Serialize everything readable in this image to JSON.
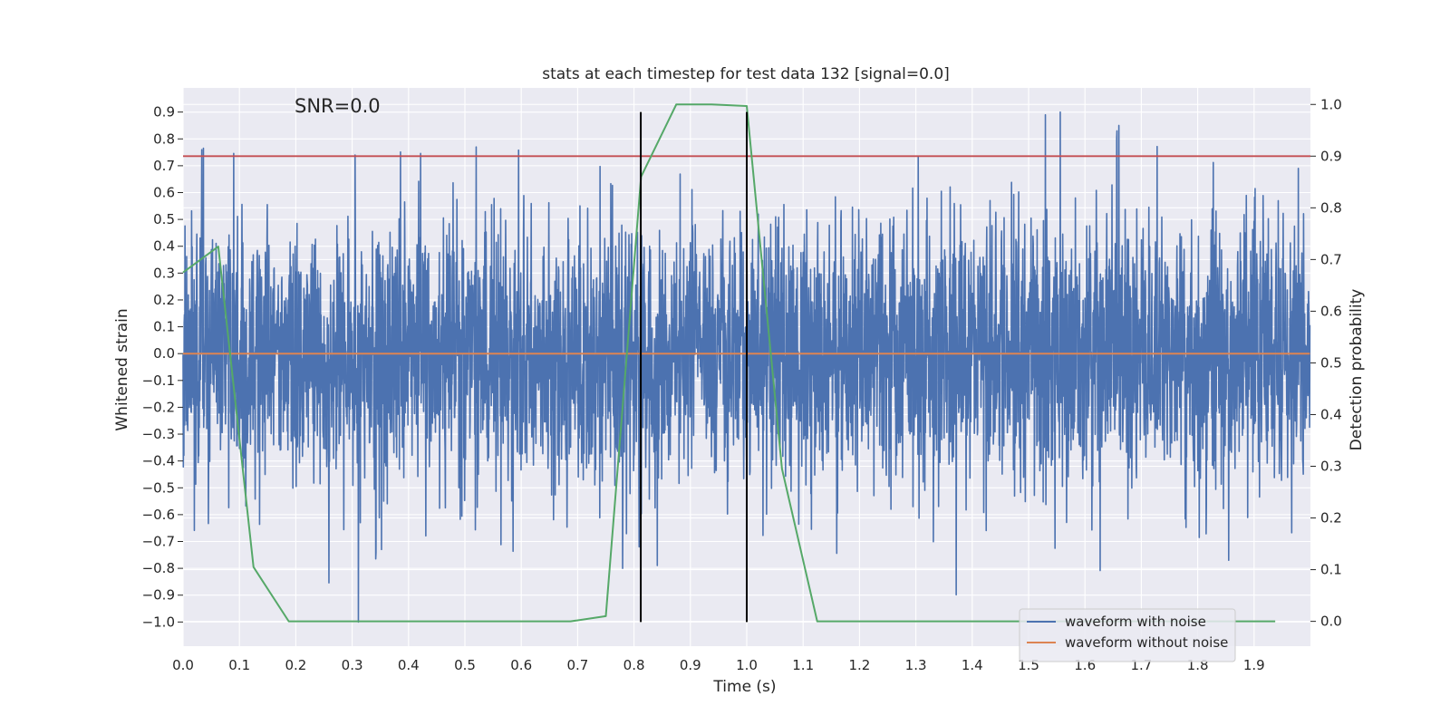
{
  "chart_data": {
    "type": "line",
    "title": "stats at each timestep for test data 132 [signal=0.0]",
    "annotation": "SNR=0.0",
    "xlabel": "Time (s)",
    "ylabel": "Whitened strain",
    "ylabel_right": "Detection probability",
    "xlim": [
      0.0,
      2.0
    ],
    "ylim": [
      -1.09,
      0.99
    ],
    "ylim_right": [
      -0.048,
      1.032
    ],
    "xticks": [
      0.0,
      0.1,
      0.2,
      0.3,
      0.4,
      0.5,
      0.6,
      0.7,
      0.8,
      0.9,
      1.0,
      1.1,
      1.2,
      1.3,
      1.4,
      1.5,
      1.6,
      1.7,
      1.8,
      1.9
    ],
    "xtick_labels": [
      "0.0",
      "0.1",
      "0.2",
      "0.3",
      "0.4",
      "0.5",
      "0.6",
      "0.7",
      "0.8",
      "0.9",
      "1.0",
      "1.1",
      "1.2",
      "1.3",
      "1.4",
      "1.5",
      "1.6",
      "1.7",
      "1.8",
      "1.9"
    ],
    "yticks": [
      -1.0,
      -0.9,
      -0.8,
      -0.7,
      -0.6,
      -0.5,
      -0.4,
      -0.3,
      -0.2,
      -0.1,
      0.0,
      0.1,
      0.2,
      0.3,
      0.4,
      0.5,
      0.6,
      0.7,
      0.8,
      0.9
    ],
    "ytick_labels": [
      "−1.0",
      "−0.9",
      "−0.8",
      "−0.7",
      "−0.6",
      "−0.5",
      "−0.4",
      "−0.3",
      "−0.2",
      "−0.1",
      "0.0",
      "0.1",
      "0.2",
      "0.3",
      "0.4",
      "0.5",
      "0.6",
      "0.7",
      "0.8",
      "0.9"
    ],
    "yticks_right": [
      0.0,
      0.1,
      0.2,
      0.3,
      0.4,
      0.5,
      0.6,
      0.7,
      0.8,
      0.9,
      1.0
    ],
    "ytick_labels_right": [
      "0.0",
      "0.1",
      "0.2",
      "0.3",
      "0.4",
      "0.5",
      "0.6",
      "0.7",
      "0.8",
      "0.9",
      "1.0"
    ],
    "grid": true,
    "legend_placement": "lower-right",
    "threshold_right": 0.9,
    "vlines_x": [
      0.812,
      1.0
    ],
    "vline_ylim": [
      -1.0,
      0.9
    ],
    "series": [
      {
        "name": "waveform with noise",
        "axis": "left",
        "color": "#4c72b0",
        "noise_std": 0.25,
        "sample_rate": 2048,
        "spikes": [
          [
            0.033,
            0.76
          ],
          [
            0.311,
            -1.0
          ],
          [
            0.52,
            0.77
          ],
          [
            1.556,
            0.9
          ],
          [
            1.53,
            0.89
          ],
          [
            1.66,
            0.85
          ],
          [
            1.855,
            -0.77
          ],
          [
            0.305,
            0.74
          ],
          [
            0.78,
            -0.8
          ],
          [
            0.352,
            -0.73
          ]
        ],
        "x_range": [
          0.0,
          1.999
        ]
      },
      {
        "name": "waveform without noise",
        "axis": "left",
        "color": "#dd8452",
        "x": [
          0.0,
          1.999
        ],
        "values": [
          0.0,
          0.0
        ]
      },
      {
        "axis": "right",
        "color": "#55a868",
        "x": [
          0.0,
          0.0625,
          0.125,
          0.1875,
          0.25,
          0.3125,
          0.375,
          0.4375,
          0.5,
          0.5625,
          0.625,
          0.6875,
          0.75,
          0.8125,
          0.875,
          0.9375,
          1.0,
          1.0625,
          1.125,
          1.1875,
          1.25,
          1.3125,
          1.375,
          1.4375,
          1.5,
          1.5625,
          1.625,
          1.6875,
          1.75,
          1.8125,
          1.875,
          1.9375
        ],
        "values": [
          0.675,
          0.725,
          0.105,
          0.0,
          0.0,
          0.0,
          0.0,
          0.0,
          0.0,
          0.0,
          0.0,
          0.0,
          0.01,
          0.86,
          1.0,
          1.0,
          0.997,
          0.295,
          0.0,
          0.0,
          0.0,
          0.0,
          0.0,
          0.0,
          0.0,
          0.0,
          0.0,
          0.0,
          0.0,
          0.0,
          0.0,
          0.0
        ]
      }
    ],
    "colors": {
      "background": "#eaeaf2",
      "grid": "#ffffff",
      "threshold": "#c44e52",
      "vline": "#000000",
      "text": "#262626"
    }
  }
}
